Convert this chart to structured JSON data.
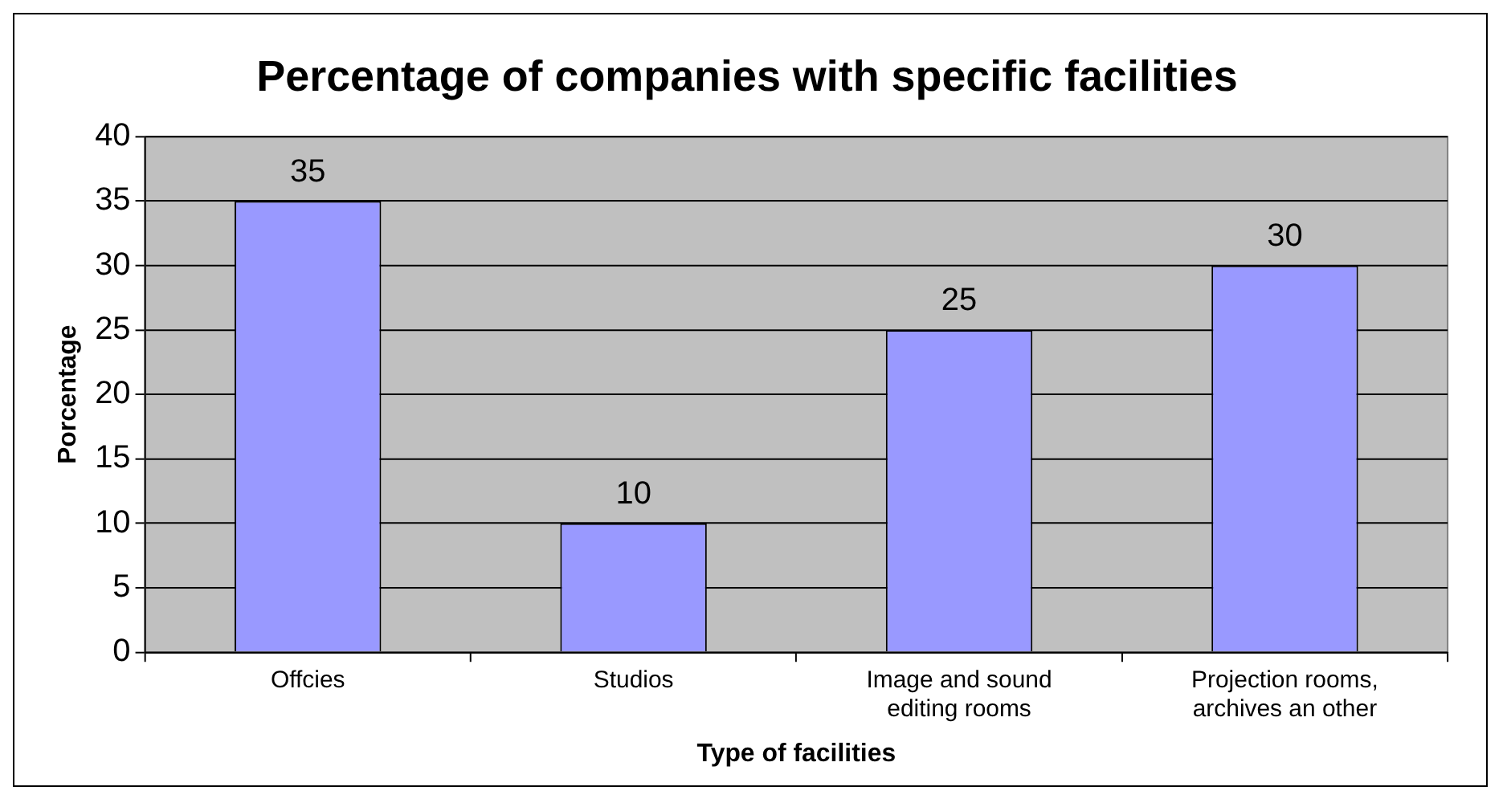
{
  "chart_data": {
    "type": "bar",
    "title": "Percentage of companies with specific facilities",
    "xlabel": "Type of facilities",
    "ylabel": "Porcentage",
    "categories": [
      "Offcies",
      "Studios",
      "Image and sound editing rooms",
      "Projection rooms, archives an other"
    ],
    "values": [
      35,
      10,
      25,
      30
    ],
    "color": "#9999ff",
    "ylim": [
      0,
      40
    ],
    "yticks": [
      0,
      5,
      10,
      15,
      20,
      25,
      30,
      35,
      40
    ],
    "grid": "y",
    "data_labels": true,
    "legend": false
  }
}
